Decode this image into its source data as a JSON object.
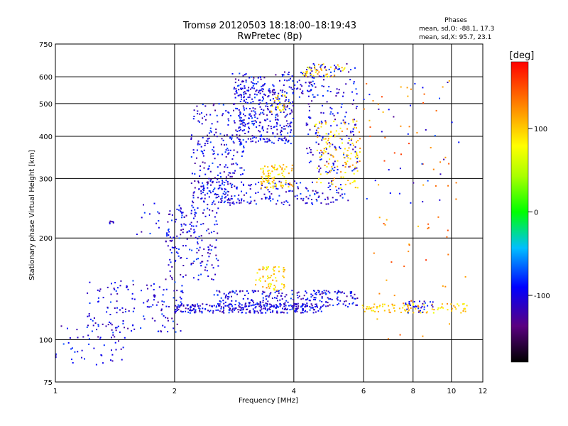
{
  "chart_data": {
    "type": "scatter",
    "title": "Tromsø 20120503 18:18:00–18:19:43",
    "subtitle": "RwPretec (8p)",
    "xlabel": "Frequency [MHz]",
    "ylabel": "Stationary phase Virtual Height [km]",
    "x_scale": "log",
    "y_scale": "log",
    "xlim": [
      1,
      12
    ],
    "ylim": [
      75,
      750
    ],
    "x_ticks": [
      1,
      2,
      4,
      6,
      8,
      10,
      12
    ],
    "y_ticks": [
      75,
      100,
      200,
      300,
      400,
      500,
      600,
      750
    ],
    "grid": true,
    "phases_box": {
      "heading": "Phases",
      "line1": "mean, sd,O: -88.1, 17.3",
      "line2": "mean, sd,X:  95.7, 23.1"
    },
    "colorbar": {
      "label": "[deg]",
      "range": [
        -180,
        180
      ],
      "ticks": [
        100,
        0,
        -100
      ],
      "colormap": "rainbow"
    },
    "clusters": [
      {
        "x": [
          1.0,
          1.5
        ],
        "y": [
          82,
          112
        ],
        "phase": -100,
        "density": 50
      },
      {
        "x": [
          1.2,
          2.1
        ],
        "y": [
          105,
          150
        ],
        "phase": -100,
        "density": 150
      },
      {
        "x": [
          1.6,
          2.3
        ],
        "y": [
          205,
          255
        ],
        "phase": -100,
        "density": 35
      },
      {
        "x": [
          1.35,
          1.45
        ],
        "y": [
          220,
          225
        ],
        "phase": -100,
        "density": 6
      },
      {
        "x": [
          1.9,
          2.6
        ],
        "y": [
          150,
          250
        ],
        "phase": -100,
        "density": 160
      },
      {
        "x": [
          2.0,
          4.7
        ],
        "y": [
          120,
          128
        ],
        "phase": -100,
        "density": 280
      },
      {
        "x": [
          2.5,
          5.8
        ],
        "y": [
          125,
          140
        ],
        "phase": -100,
        "density": 220
      },
      {
        "x": [
          3.2,
          3.8
        ],
        "y": [
          140,
          165
        ],
        "phase": 100,
        "density": 60
      },
      {
        "x": [
          2.3,
          5.5
        ],
        "y": [
          250,
          295
        ],
        "phase": -100,
        "density": 180
      },
      {
        "x": [
          2.2,
          3.0
        ],
        "y": [
          250,
          500
        ],
        "phase": -100,
        "density": 260
      },
      {
        "x": [
          2.9,
          4.0
        ],
        "y": [
          380,
          560
        ],
        "phase": -100,
        "density": 300
      },
      {
        "x": [
          2.8,
          4.5
        ],
        "y": [
          520,
          620
        ],
        "phase": -100,
        "density": 120
      },
      {
        "x": [
          4.3,
          5.8
        ],
        "y": [
          310,
          660
        ],
        "phase": -100,
        "density": 200
      },
      {
        "x": [
          4.5,
          5.9
        ],
        "y": [
          280,
          450
        ],
        "phase": 100,
        "density": 130
      },
      {
        "x": [
          4.2,
          5.4
        ],
        "y": [
          600,
          660
        ],
        "phase": 100,
        "density": 40
      },
      {
        "x": [
          3.3,
          4.0
        ],
        "y": [
          280,
          330
        ],
        "phase": 100,
        "density": 90
      },
      {
        "x": [
          3.5,
          3.9
        ],
        "y": [
          470,
          540
        ],
        "phase": 100,
        "density": 25
      },
      {
        "x": [
          5.9,
          11.0
        ],
        "y": [
          120,
          128
        ],
        "phase": 100,
        "density": 90
      },
      {
        "x": [
          6.0,
          11.0
        ],
        "y": [
          100,
          620
        ],
        "phase": 130,
        "density": 70
      },
      {
        "x": [
          7.5,
          9.0
        ],
        "y": [
          120,
          130
        ],
        "phase": -100,
        "density": 30
      },
      {
        "x": [
          6.0,
          11.5
        ],
        "y": [
          250,
          600
        ],
        "phase": -100,
        "density": 30
      }
    ]
  }
}
